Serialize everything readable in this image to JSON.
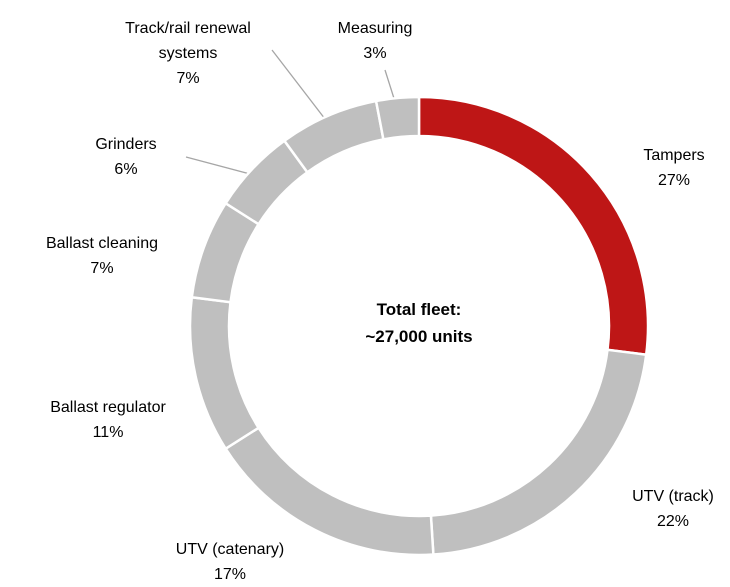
{
  "chart_data": {
    "type": "donut",
    "categories": [
      "Tampers",
      "UTV (track)",
      "UTV (catenary)",
      "Ballast regulator",
      "Ballast cleaning",
      "Grinders",
      "Track/rail renewal systems",
      "Measuring"
    ],
    "values": [
      27,
      22,
      17,
      11,
      7,
      6,
      7,
      3
    ],
    "value_labels": [
      "27%",
      "22%",
      "17%",
      "11%",
      "7%",
      "6%",
      "7%",
      "3%"
    ],
    "colors": [
      "#be1616",
      "#bfbfbf",
      "#bfbfbf",
      "#bfbfbf",
      "#bfbfbf",
      "#bfbfbf",
      "#bfbfbf",
      "#bfbfbf"
    ],
    "center_text": [
      "Total fleet:",
      "~27,000 units"
    ]
  }
}
